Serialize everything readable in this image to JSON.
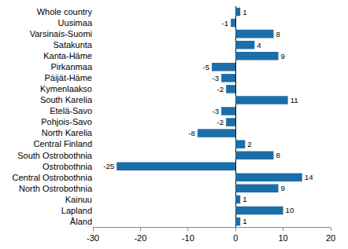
{
  "chart_data": {
    "type": "bar",
    "orientation": "horizontal",
    "categories": [
      "Whole country",
      "Uusimaa",
      "Varsinais-Suomi",
      "Satakunta",
      "Kanta-Häme",
      "Pirkanmaa",
      "Päijät-Häme",
      "Kymenlaakso",
      "South Karelia",
      "Etelä-Savo",
      "Pohjois-Savo",
      "North Karelia",
      "Central Finland",
      "South Ostrobothnia",
      "Ostrobothnia",
      "Central Ostrobothnia",
      "North Ostrobothnia",
      "Kainuu",
      "Lapland",
      "Åland"
    ],
    "values": [
      1,
      -1,
      8,
      4,
      9,
      -5,
      -3,
      -2,
      11,
      -3,
      -2,
      -8,
      2,
      8,
      -25,
      14,
      9,
      1,
      10,
      1
    ],
    "color": "#1b6ea8",
    "xlim": [
      -30,
      20
    ],
    "xticks": [
      -30,
      -20,
      -10,
      0,
      10,
      20
    ],
    "grid": false,
    "data_labels": true
  }
}
